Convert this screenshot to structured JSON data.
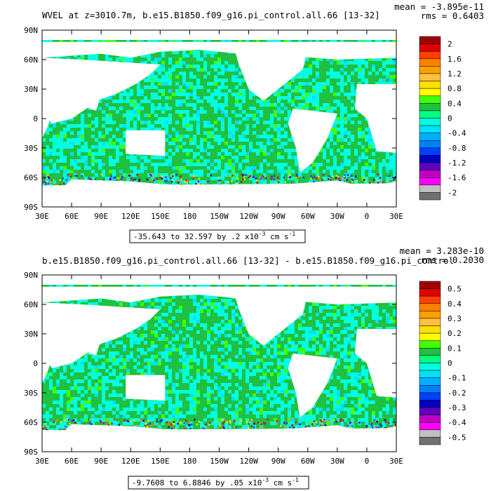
{
  "chart_data": [
    {
      "type": "heatmap",
      "title": "WVEL at z=3010.7m, b.e15.B1850.f09_g16.pi_control.all.66 [13-32]",
      "stats": {
        "mean": "mean = -3.895e-11",
        "rms": "rms = 0.6403"
      },
      "x_ticks": [
        "30E",
        "60E",
        "90E",
        "120E",
        "150E",
        "180",
        "150W",
        "120W",
        "90W",
        "60W",
        "30W",
        "0",
        "30E"
      ],
      "y_ticks": [
        "90N",
        "60N",
        "30N",
        "0",
        "30S",
        "60S",
        "90S"
      ],
      "range_text": "-35.643 to 32.597 by .2 x10",
      "range_exp": "-3",
      "range_unit": " cm s",
      "range_unit_exp": "-1",
      "colorbar": {
        "labels": [
          "2",
          "1.6",
          "1.2",
          "0.8",
          "0.4",
          "0",
          "-0.4",
          "-0.8",
          "-1.2",
          "-1.6",
          "-2"
        ],
        "colors": [
          "#a00000",
          "#e00000",
          "#ff4000",
          "#ff8000",
          "#ffa000",
          "#ffc040",
          "#ffe000",
          "#ffff00",
          "#40ff00",
          "#20c040",
          "#00ff80",
          "#00ffe0",
          "#00e0ff",
          "#00b0ff",
          "#0080ff",
          "#0040ff",
          "#0000c0",
          "#6000c0",
          "#c000c0",
          "#ff00ff",
          "#c0c0c0",
          "#707070"
        ]
      }
    },
    {
      "type": "heatmap",
      "title": "b.e15.B1850.f09_g16.pi_control.all.66 [13-32] - b.e15.B1850.f09_g16.pi_control",
      "stats": {
        "mean": "mean = 3.283e-10",
        "rms": "rms = 0.2030"
      },
      "x_ticks": [
        "30E",
        "60E",
        "90E",
        "120E",
        "150E",
        "180",
        "150W",
        "120W",
        "90W",
        "60W",
        "30W",
        "0",
        "30E"
      ],
      "y_ticks": [
        "90N",
        "60N",
        "30N",
        "0",
        "30S",
        "60S",
        "90S"
      ],
      "range_text": "-9.7608 to 6.8846 by .05 x10",
      "range_exp": "-3",
      "range_unit": " cm s",
      "range_unit_exp": "-1",
      "colorbar": {
        "labels": [
          "0.5",
          "0.4",
          "0.3",
          "0.2",
          "0.1",
          "0",
          "-0.1",
          "-0.2",
          "-0.3",
          "-0.4",
          "-0.5"
        ],
        "colors": [
          "#a00000",
          "#e00000",
          "#ff4000",
          "#ff8000",
          "#ffa000",
          "#ffc040",
          "#ffe000",
          "#ffff00",
          "#40ff00",
          "#20c040",
          "#00ff80",
          "#00ffe0",
          "#00e0ff",
          "#00b0ff",
          "#0080ff",
          "#0040ff",
          "#0000c0",
          "#6000c0",
          "#c000c0",
          "#ff00ff",
          "#c0c0c0",
          "#707070"
        ]
      }
    }
  ]
}
